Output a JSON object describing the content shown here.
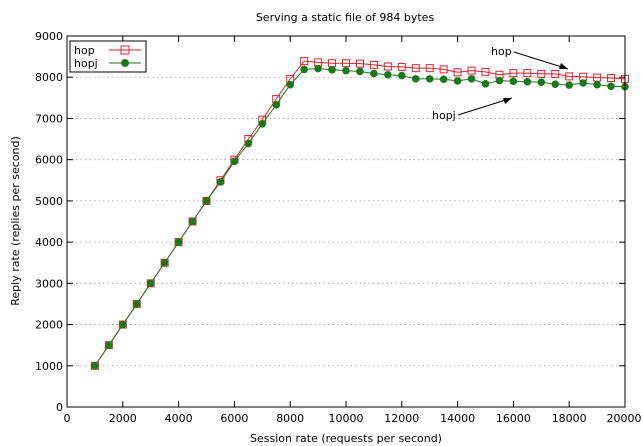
{
  "chart_data": {
    "type": "line",
    "title": "Serving a static file of 984 bytes",
    "xlabel": "Session rate (requests per second)",
    "ylabel": "Reply rate (replies per second)",
    "xlim": [
      0,
      20000
    ],
    "ylim": [
      0,
      9000
    ],
    "xticks": [
      0,
      2000,
      4000,
      6000,
      8000,
      10000,
      12000,
      14000,
      16000,
      18000,
      20000
    ],
    "yticks": [
      0,
      1000,
      2000,
      3000,
      4000,
      5000,
      6000,
      7000,
      8000,
      9000
    ],
    "grid": "dotted",
    "legend_position": "top-left",
    "x": [
      1000,
      1500,
      2000,
      2500,
      3000,
      3500,
      4000,
      4500,
      5000,
      5500,
      6000,
      6500,
      7000,
      7500,
      8000,
      8500,
      9000,
      9500,
      10000,
      10500,
      11000,
      11500,
      12000,
      12500,
      13000,
      13500,
      14000,
      14500,
      15000,
      15500,
      16000,
      16500,
      17000,
      17500,
      18000,
      18500,
      19000,
      19500,
      20000
    ],
    "series": [
      {
        "name": "hop",
        "color": "#e0202a",
        "marker": "open-square",
        "values": [
          1000,
          1500,
          2000,
          2500,
          3000,
          3500,
          4000,
          4500,
          5000,
          5500,
          6000,
          6500,
          6970,
          7470,
          7960,
          8390,
          8360,
          8340,
          8340,
          8330,
          8300,
          8260,
          8250,
          8220,
          8220,
          8190,
          8120,
          8160,
          8130,
          8060,
          8100,
          8100,
          8080,
          8080,
          8020,
          8010,
          7990,
          7980,
          7960
        ]
      },
      {
        "name": "hopj",
        "color": "#1a7a1a",
        "marker": "filled-circle",
        "values": [
          1000,
          1500,
          2000,
          2500,
          3000,
          3500,
          4000,
          4500,
          5000,
          5460,
          5960,
          6390,
          6870,
          7330,
          7820,
          8190,
          8210,
          8180,
          8160,
          8140,
          8090,
          8060,
          8040,
          7960,
          7960,
          7950,
          7910,
          7960,
          7840,
          7920,
          7900,
          7890,
          7880,
          7830,
          7810,
          7860,
          7820,
          7780,
          7770
        ]
      }
    ],
    "annotations": [
      {
        "text": "hop",
        "series": 0,
        "target_x": 18000
      },
      {
        "text": "hopj",
        "series": 1,
        "target_x": 15600
      }
    ]
  }
}
